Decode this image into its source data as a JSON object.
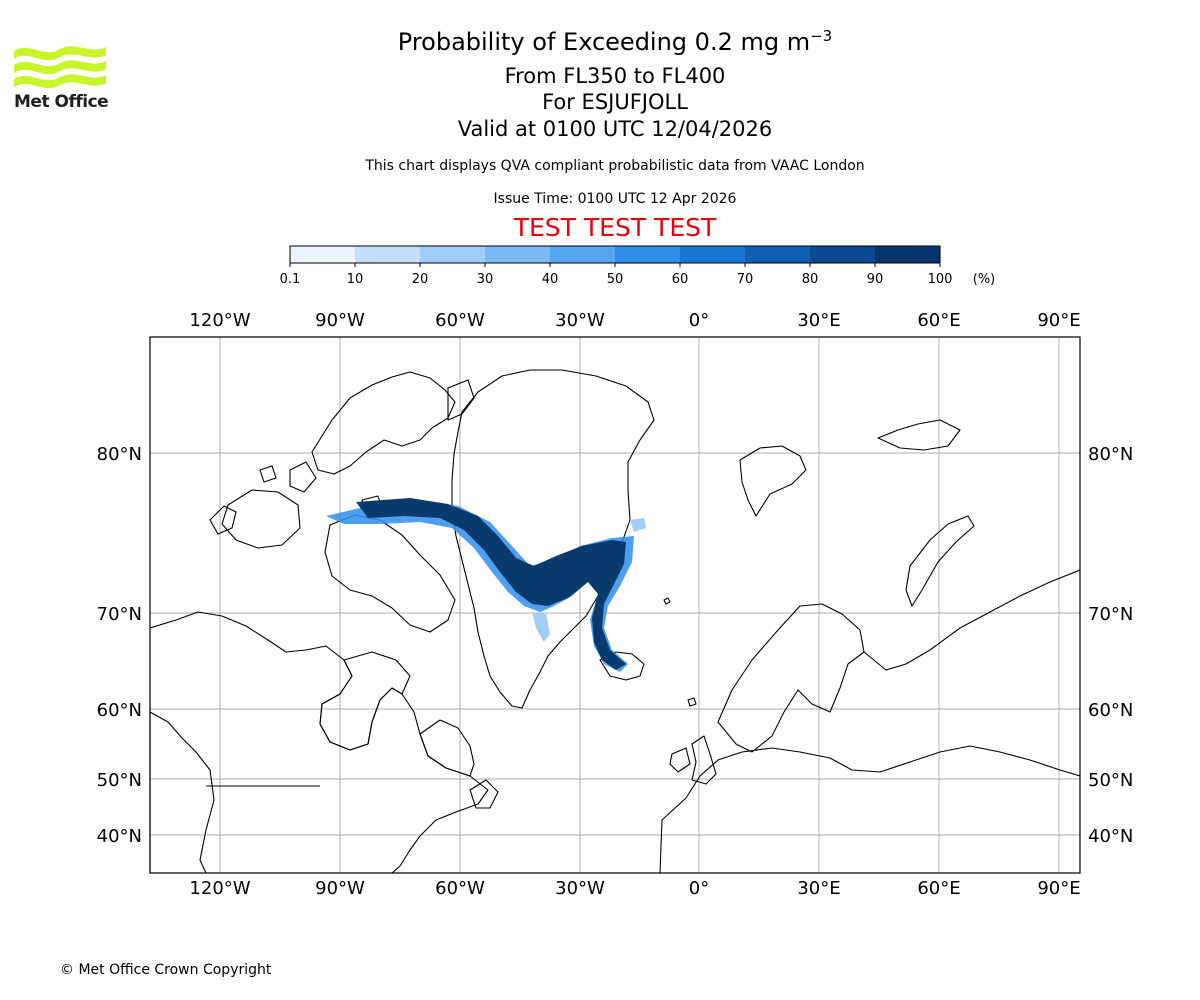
{
  "logo": {
    "text": "Met Office",
    "icon": "met-office-wave-icon",
    "color": "#c8f52a"
  },
  "title": {
    "main": "Probability of Exceeding 0.2 mg m",
    "main_sup": "−3",
    "flight_levels": "From FL350 to FL400",
    "volcano": "For ESJUFJOLL",
    "valid": "Valid at 0100 UTC 12/04/2026"
  },
  "note": "This chart displays QVA compliant probabilistic data from VAAC London",
  "issue_time": "Issue Time: 0100 UTC 12 Apr 2026",
  "test_banner": "TEST TEST TEST",
  "test_color": "#e8000b",
  "colorbar": {
    "ticks": [
      "0.1",
      "10",
      "20",
      "30",
      "40",
      "50",
      "60",
      "70",
      "80",
      "90",
      "100"
    ],
    "unit": "(%)",
    "colors": [
      "#eaf3fe",
      "#c6e0fb",
      "#a2cdf8",
      "#7cb9f5",
      "#56a5f1",
      "#2f8eec",
      "#1877d6",
      "#0f5fb3",
      "#0a4a90",
      "#063570"
    ]
  },
  "map": {
    "lon_labels": [
      "120°W",
      "90°W",
      "60°W",
      "30°W",
      "0°",
      "30°E",
      "60°E",
      "90°E"
    ],
    "lat_labels": [
      "80°N",
      "70°N",
      "60°N",
      "50°N",
      "40°N"
    ],
    "plume_color": "#083a6e"
  },
  "copyright": "© Met Office Crown Copyright"
}
